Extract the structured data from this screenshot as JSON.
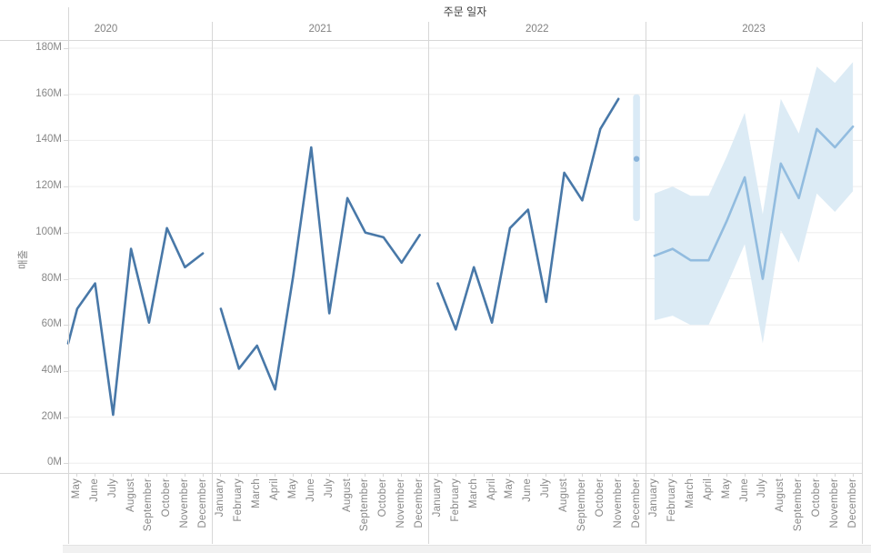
{
  "chart_data": {
    "type": "line",
    "title": "주문 일자",
    "ylabel": "매출",
    "ylim_millions": [
      0,
      180
    ],
    "y_tick_labels": [
      "0M",
      "20M",
      "40M",
      "60M",
      "80M",
      "100M",
      "120M",
      "140M",
      "160M",
      "180M"
    ],
    "grid": true,
    "legend": "none",
    "series": [
      {
        "year": "2020",
        "role": "actual",
        "months": [
          "May",
          "June",
          "July",
          "August",
          "September",
          "October",
          "November",
          "December"
        ],
        "values_M": [
          67,
          78,
          21,
          93,
          61,
          102,
          85,
          91
        ],
        "edge_start_value_M": 52
      },
      {
        "year": "2021",
        "role": "actual",
        "months": [
          "January",
          "February",
          "March",
          "April",
          "May",
          "June",
          "July",
          "August",
          "September",
          "October",
          "November",
          "December"
        ],
        "values_M": [
          67,
          41,
          51,
          32,
          81,
          137,
          65,
          115,
          100,
          98,
          87,
          99
        ]
      },
      {
        "year": "2022",
        "role": "actual",
        "months": [
          "January",
          "February",
          "March",
          "April",
          "May",
          "June",
          "July",
          "August",
          "September",
          "October",
          "November",
          "December"
        ],
        "values_M": [
          78,
          58,
          85,
          61,
          102,
          110,
          70,
          126,
          114,
          145,
          158
        ],
        "estimate": {
          "month": "December",
          "value_M": 132,
          "range_M": [
            105,
            160
          ]
        }
      },
      {
        "year": "2023",
        "role": "forecast",
        "months": [
          "January",
          "February",
          "March",
          "April",
          "May",
          "June",
          "July",
          "August",
          "September",
          "October",
          "November",
          "December"
        ],
        "values_M": [
          90,
          93,
          88,
          88,
          105,
          124,
          80,
          130,
          115,
          145,
          137,
          146
        ],
        "band_upper_M": [
          117,
          120,
          116,
          116,
          133,
          152,
          108,
          158,
          143,
          172,
          165,
          174
        ],
        "band_lower_M": [
          62,
          64,
          60,
          60,
          77,
          95,
          52,
          101,
          87,
          117,
          109,
          118
        ]
      }
    ],
    "colors": {
      "actual_line": "#4878a8",
      "forecast_line": "#92bcdf",
      "confidence_band": "#dcebf5",
      "estimate_range_bar": "#daeaf6",
      "estimate_marker": "#8ab4da"
    }
  }
}
